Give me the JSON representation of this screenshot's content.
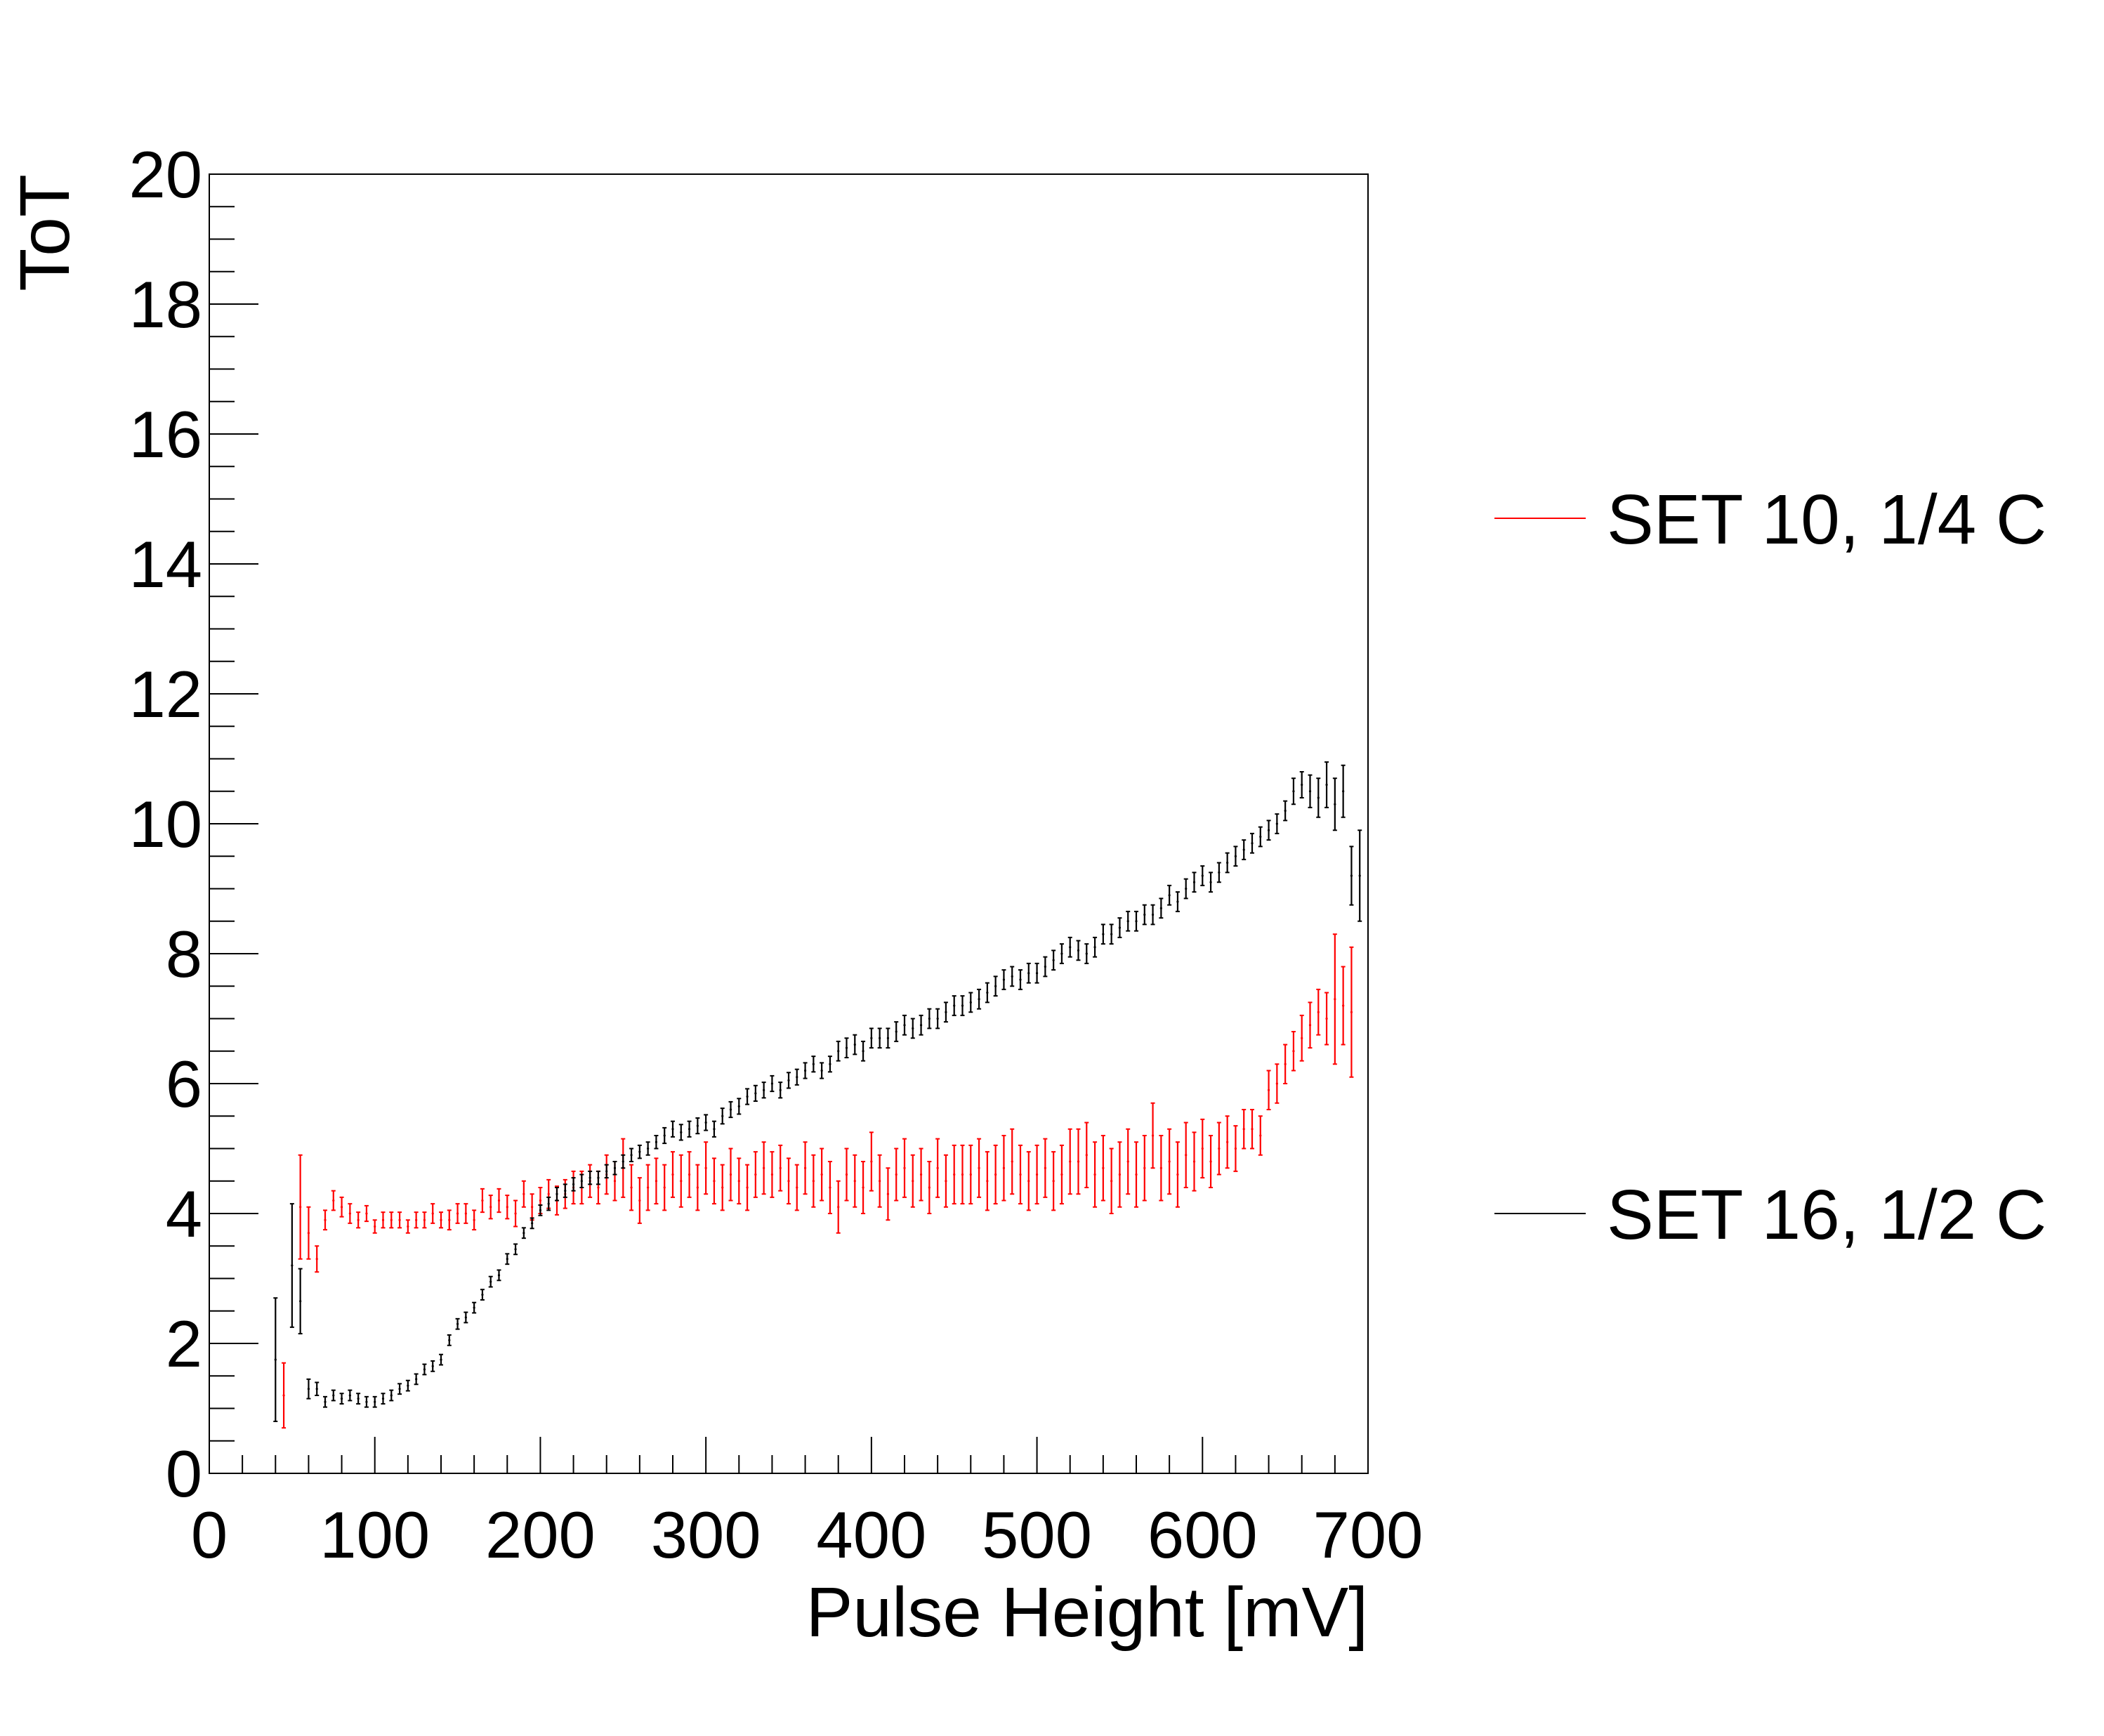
{
  "chart_data": {
    "type": "scatter",
    "xlabel": "Pulse Height [mV]",
    "ylabel": "ToT",
    "xlim": [
      0,
      700
    ],
    "ylim": [
      0,
      20
    ],
    "x_ticks": [
      "0",
      "100",
      "200",
      "300",
      "400",
      "500",
      "600",
      "700"
    ],
    "y_ticks": [
      "0",
      "2",
      "4",
      "6",
      "8",
      "10",
      "12",
      "14",
      "16",
      "18",
      "20"
    ],
    "grid": false,
    "legend_position": "right",
    "series": [
      {
        "name": "SET 10, 1/4 C",
        "color": "#ff0000",
        "x": [
          45,
          55,
          60,
          65,
          70,
          75,
          80,
          85,
          90,
          95,
          100,
          105,
          110,
          115,
          120,
          125,
          130,
          135,
          140,
          145,
          150,
          155,
          160,
          165,
          170,
          175,
          180,
          185,
          190,
          195,
          200,
          205,
          210,
          215,
          220,
          225,
          230,
          235,
          240,
          245,
          250,
          255,
          260,
          265,
          270,
          275,
          280,
          285,
          290,
          295,
          300,
          305,
          310,
          315,
          320,
          325,
          330,
          335,
          340,
          345,
          350,
          355,
          360,
          365,
          370,
          375,
          380,
          385,
          390,
          395,
          400,
          405,
          410,
          415,
          420,
          425,
          430,
          435,
          440,
          445,
          450,
          455,
          460,
          465,
          470,
          475,
          480,
          485,
          490,
          495,
          500,
          505,
          510,
          515,
          520,
          525,
          530,
          535,
          540,
          545,
          550,
          555,
          560,
          565,
          570,
          575,
          580,
          585,
          590,
          595,
          600,
          605,
          610,
          615,
          620,
          625,
          630,
          635,
          640,
          645,
          650,
          655,
          660,
          665,
          670,
          675,
          680,
          685,
          690
        ],
        "y": [
          1.2,
          4.1,
          3.7,
          3.3,
          3.9,
          4.2,
          4.1,
          4.0,
          3.9,
          4.0,
          3.8,
          3.9,
          3.9,
          3.9,
          3.8,
          3.9,
          3.9,
          4.0,
          3.9,
          3.9,
          4.0,
          4.0,
          3.9,
          4.2,
          4.1,
          4.2,
          4.1,
          4.0,
          4.3,
          4.1,
          4.2,
          4.3,
          4.2,
          4.3,
          4.4,
          4.4,
          4.5,
          4.4,
          4.6,
          4.5,
          4.7,
          4.4,
          4.2,
          4.4,
          4.5,
          4.4,
          4.6,
          4.5,
          4.6,
          4.4,
          4.7,
          4.5,
          4.4,
          4.6,
          4.5,
          4.4,
          4.6,
          4.7,
          4.6,
          4.7,
          4.5,
          4.4,
          4.7,
          4.5,
          4.6,
          4.4,
          4.1,
          4.6,
          4.5,
          4.4,
          4.8,
          4.5,
          4.3,
          4.6,
          4.7,
          4.5,
          4.6,
          4.4,
          4.7,
          4.5,
          4.6,
          4.6,
          4.6,
          4.7,
          4.5,
          4.6,
          4.7,
          4.8,
          4.6,
          4.5,
          4.6,
          4.7,
          4.5,
          4.6,
          4.8,
          4.8,
          4.9,
          4.6,
          4.7,
          4.5,
          4.6,
          4.8,
          4.6,
          4.7,
          5.2,
          4.7,
          4.8,
          4.6,
          4.9,
          4.8,
          5.0,
          4.8,
          5.0,
          5.1,
          5.0,
          5.3,
          5.3,
          5.2,
          5.9,
          6.0,
          6.3,
          6.5,
          6.7,
          6.9,
          7.1,
          7.0,
          7.3,
          7.2,
          7.1
        ],
        "yerr": [
          0.5,
          0.8,
          0.4,
          0.2,
          0.15,
          0.15,
          0.15,
          0.15,
          0.12,
          0.12,
          0.1,
          0.12,
          0.12,
          0.12,
          0.1,
          0.12,
          0.12,
          0.15,
          0.12,
          0.15,
          0.15,
          0.15,
          0.15,
          0.18,
          0.18,
          0.18,
          0.18,
          0.2,
          0.2,
          0.2,
          0.2,
          0.22,
          0.22,
          0.22,
          0.25,
          0.25,
          0.25,
          0.25,
          0.3,
          0.3,
          0.45,
          0.35,
          0.35,
          0.35,
          0.35,
          0.35,
          0.35,
          0.4,
          0.35,
          0.35,
          0.4,
          0.35,
          0.35,
          0.4,
          0.35,
          0.35,
          0.35,
          0.4,
          0.35,
          0.35,
          0.35,
          0.35,
          0.4,
          0.4,
          0.4,
          0.4,
          0.4,
          0.4,
          0.4,
          0.4,
          0.45,
          0.4,
          0.4,
          0.4,
          0.45,
          0.4,
          0.4,
          0.4,
          0.45,
          0.4,
          0.45,
          0.45,
          0.45,
          0.45,
          0.45,
          0.45,
          0.5,
          0.5,
          0.45,
          0.45,
          0.45,
          0.45,
          0.45,
          0.45,
          0.5,
          0.5,
          0.5,
          0.5,
          0.5,
          0.5,
          0.5,
          0.5,
          0.5,
          0.5,
          0.5,
          0.5,
          0.5,
          0.5,
          0.5,
          0.45,
          0.45,
          0.4,
          0.4,
          0.4,
          0.35,
          0.3,
          0.3,
          0.3,
          0.3,
          0.3,
          0.3,
          0.3,
          0.35,
          0.35,
          0.35,
          0.4,
          1.0,
          0.6,
          1.0
        ]
      },
      {
        "name": "SET 16, 1/2 C",
        "color": "#000000",
        "x": [
          40,
          50,
          55,
          60,
          65,
          70,
          75,
          80,
          85,
          90,
          95,
          100,
          105,
          110,
          115,
          120,
          125,
          130,
          135,
          140,
          145,
          150,
          155,
          160,
          165,
          170,
          175,
          180,
          185,
          190,
          195,
          200,
          205,
          210,
          215,
          220,
          225,
          230,
          235,
          240,
          245,
          250,
          255,
          260,
          265,
          270,
          275,
          280,
          285,
          290,
          295,
          300,
          305,
          310,
          315,
          320,
          325,
          330,
          335,
          340,
          345,
          350,
          355,
          360,
          365,
          370,
          375,
          380,
          385,
          390,
          395,
          400,
          405,
          410,
          415,
          420,
          425,
          430,
          435,
          440,
          445,
          450,
          455,
          460,
          465,
          470,
          475,
          480,
          485,
          490,
          495,
          500,
          505,
          510,
          515,
          520,
          525,
          530,
          535,
          540,
          545,
          550,
          555,
          560,
          565,
          570,
          575,
          580,
          585,
          590,
          595,
          600,
          605,
          610,
          615,
          620,
          625,
          630,
          635,
          640,
          645,
          650,
          655,
          660,
          665,
          670,
          675,
          680,
          685,
          690,
          695
        ],
        "y": [
          1.75,
          3.2,
          2.65,
          1.3,
          1.3,
          1.1,
          1.2,
          1.15,
          1.2,
          1.15,
          1.1,
          1.1,
          1.15,
          1.2,
          1.3,
          1.35,
          1.45,
          1.6,
          1.65,
          1.75,
          2.05,
          2.3,
          2.4,
          2.55,
          2.75,
          2.95,
          3.05,
          3.3,
          3.45,
          3.7,
          3.85,
          4.05,
          4.15,
          4.3,
          4.35,
          4.45,
          4.5,
          4.55,
          4.55,
          4.65,
          4.7,
          4.8,
          4.9,
          4.95,
          5.0,
          5.1,
          5.2,
          5.3,
          5.25,
          5.3,
          5.35,
          5.4,
          5.3,
          5.5,
          5.6,
          5.65,
          5.8,
          5.85,
          5.9,
          6.0,
          5.9,
          6.05,
          6.1,
          6.2,
          6.3,
          6.2,
          6.3,
          6.5,
          6.55,
          6.6,
          6.5,
          6.7,
          6.7,
          6.7,
          6.8,
          6.9,
          6.85,
          6.9,
          7.0,
          7.0,
          7.1,
          7.2,
          7.2,
          7.25,
          7.3,
          7.4,
          7.5,
          7.6,
          7.65,
          7.6,
          7.7,
          7.7,
          7.8,
          7.9,
          8.0,
          8.1,
          8.05,
          8.0,
          8.1,
          8.3,
          8.3,
          8.4,
          8.5,
          8.5,
          8.6,
          8.6,
          8.7,
          8.9,
          8.8,
          9.0,
          9.1,
          9.2,
          9.1,
          9.25,
          9.4,
          9.5,
          9.6,
          9.7,
          9.8,
          9.9,
          10.0,
          10.2,
          10.5,
          10.6,
          10.5,
          10.4,
          10.6,
          10.3,
          10.5,
          9.2,
          9.2
        ],
        "yerr": [
          0.95,
          0.95,
          0.5,
          0.15,
          0.1,
          0.08,
          0.08,
          0.08,
          0.08,
          0.08,
          0.08,
          0.08,
          0.08,
          0.08,
          0.08,
          0.08,
          0.08,
          0.08,
          0.08,
          0.08,
          0.08,
          0.08,
          0.08,
          0.08,
          0.08,
          0.08,
          0.08,
          0.08,
          0.08,
          0.08,
          0.08,
          0.08,
          0.1,
          0.1,
          0.1,
          0.1,
          0.1,
          0.1,
          0.1,
          0.1,
          0.1,
          0.1,
          0.1,
          0.1,
          0.1,
          0.1,
          0.12,
          0.12,
          0.12,
          0.12,
          0.12,
          0.12,
          0.12,
          0.12,
          0.12,
          0.12,
          0.12,
          0.12,
          0.12,
          0.12,
          0.12,
          0.12,
          0.12,
          0.12,
          0.12,
          0.12,
          0.12,
          0.15,
          0.15,
          0.15,
          0.15,
          0.15,
          0.15,
          0.15,
          0.15,
          0.15,
          0.15,
          0.15,
          0.15,
          0.15,
          0.15,
          0.15,
          0.15,
          0.15,
          0.15,
          0.15,
          0.15,
          0.15,
          0.15,
          0.15,
          0.15,
          0.15,
          0.15,
          0.15,
          0.15,
          0.15,
          0.15,
          0.15,
          0.15,
          0.15,
          0.15,
          0.15,
          0.15,
          0.15,
          0.15,
          0.15,
          0.15,
          0.15,
          0.15,
          0.15,
          0.15,
          0.15,
          0.15,
          0.15,
          0.15,
          0.15,
          0.15,
          0.15,
          0.15,
          0.15,
          0.15,
          0.15,
          0.2,
          0.2,
          0.25,
          0.3,
          0.35,
          0.4,
          0.4,
          0.45,
          0.7
        ]
      }
    ]
  }
}
